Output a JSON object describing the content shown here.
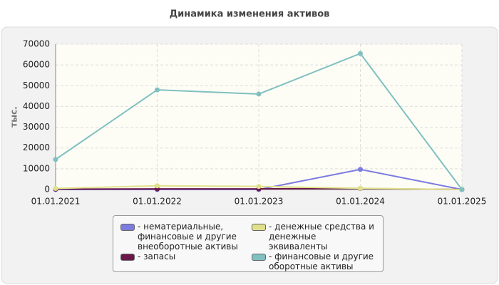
{
  "chart_data": {
    "type": "line",
    "title": "Динамика изменения активов",
    "y_label": "тыс.",
    "categories": [
      "01.01.2021",
      "01.01.2022",
      "01.01.2023",
      "01.01.2024",
      "01.01.2025"
    ],
    "series": [
      {
        "name": "нематериальные, финансовые и другие внеоборотные активы",
        "color": "#7b7be0",
        "values": [
          0,
          0,
          0,
          9700,
          0
        ]
      },
      {
        "name": "запасы",
        "color": "#6b1848",
        "values": [
          200,
          300,
          300,
          500,
          0
        ]
      },
      {
        "name": "денежные средства и денежные эквиваленты",
        "color": "#e0e08c",
        "values": [
          500,
          1800,
          1500,
          600,
          0
        ]
      },
      {
        "name": "финансовые и другие оборотные активы",
        "color": "#80c0c0",
        "values": [
          14500,
          48000,
          46000,
          65500,
          0
        ]
      }
    ],
    "ylim": [
      0,
      70000
    ],
    "yticks": [
      0,
      10000,
      20000,
      30000,
      40000,
      50000,
      60000,
      70000
    ],
    "grid": true
  }
}
